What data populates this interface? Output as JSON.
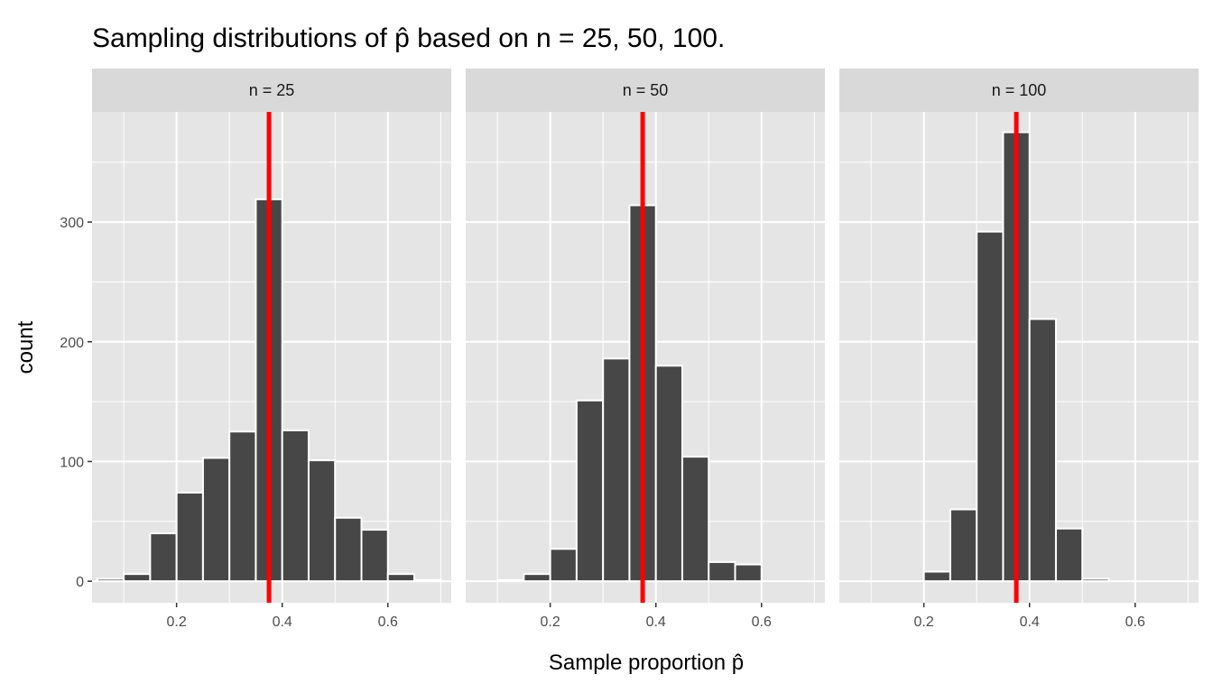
{
  "chart_data": {
    "type": "bar",
    "title": "Sampling distributions of p̂ based on n = 25, 50, 100.",
    "xlabel": "Sample proportion p̂",
    "ylabel": "count",
    "xlim": [
      0.04,
      0.72
    ],
    "ylim": [
      -18,
      392
    ],
    "x_ticks": [
      0.2,
      0.4,
      0.6
    ],
    "x_tick_labels": [
      "0.2",
      "0.4",
      "0.6"
    ],
    "y_ticks": [
      0,
      100,
      200,
      300
    ],
    "y_tick_labels": [
      "0",
      "100",
      "200",
      "300"
    ],
    "bin_width": 0.05,
    "reference_line": {
      "x": 0.375,
      "color": "#ff0000"
    },
    "grid": true,
    "colors": {
      "bar_fill": "#474747",
      "bar_outline": "#ffffff",
      "panel_background": "#e5e5e5",
      "strip_background": "#d9d9d9",
      "grid": "#ffffff"
    },
    "panels": [
      {
        "label": "n = 25",
        "bins": [
          {
            "x": 0.075,
            "count": 2
          },
          {
            "x": 0.125,
            "count": 6
          },
          {
            "x": 0.175,
            "count": 40
          },
          {
            "x": 0.225,
            "count": 74
          },
          {
            "x": 0.275,
            "count": 103
          },
          {
            "x": 0.325,
            "count": 125
          },
          {
            "x": 0.375,
            "count": 319
          },
          {
            "x": 0.425,
            "count": 126
          },
          {
            "x": 0.475,
            "count": 101
          },
          {
            "x": 0.525,
            "count": 53
          },
          {
            "x": 0.575,
            "count": 43
          },
          {
            "x": 0.625,
            "count": 6
          },
          {
            "x": 0.675,
            "count": 1
          }
        ]
      },
      {
        "label": "n = 50",
        "bins": [
          {
            "x": 0.075,
            "count": 0
          },
          {
            "x": 0.125,
            "count": 1
          },
          {
            "x": 0.175,
            "count": 6
          },
          {
            "x": 0.225,
            "count": 27
          },
          {
            "x": 0.275,
            "count": 151
          },
          {
            "x": 0.325,
            "count": 186
          },
          {
            "x": 0.375,
            "count": 314
          },
          {
            "x": 0.425,
            "count": 180
          },
          {
            "x": 0.475,
            "count": 104
          },
          {
            "x": 0.525,
            "count": 16
          },
          {
            "x": 0.575,
            "count": 14
          },
          {
            "x": 0.625,
            "count": 0
          },
          {
            "x": 0.675,
            "count": 0
          }
        ]
      },
      {
        "label": "n = 100",
        "bins": [
          {
            "x": 0.075,
            "count": 0
          },
          {
            "x": 0.125,
            "count": 0
          },
          {
            "x": 0.175,
            "count": 0
          },
          {
            "x": 0.225,
            "count": 8
          },
          {
            "x": 0.275,
            "count": 60
          },
          {
            "x": 0.325,
            "count": 292
          },
          {
            "x": 0.375,
            "count": 375
          },
          {
            "x": 0.425,
            "count": 219
          },
          {
            "x": 0.475,
            "count": 44
          },
          {
            "x": 0.525,
            "count": 2
          },
          {
            "x": 0.575,
            "count": 0
          },
          {
            "x": 0.625,
            "count": 0
          },
          {
            "x": 0.675,
            "count": 0
          }
        ]
      }
    ]
  }
}
